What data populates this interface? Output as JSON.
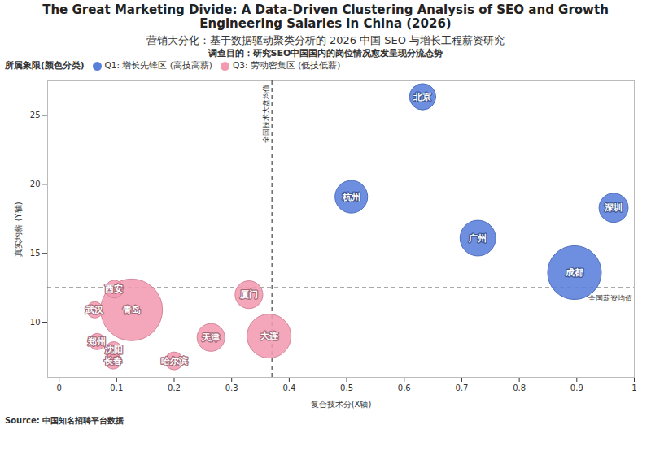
{
  "chart_data": {
    "type": "bubble",
    "title": "The Great Marketing Divide: A Data-Driven Clustering Analysis of SEO and Growth Engineering Salaries in China (2026)",
    "subtitle": "营销大分化：基于数据驱动聚类分析的 2026 中国 SEO 与增长工程薪资研究",
    "purpose": "调查目的：研究SEO中国国内的岗位情况愈发呈现分流态势",
    "legend_title": "所属象限(颜色分类)",
    "legend": "top-left",
    "x_label": "复合技术分(X轴)",
    "y_label": "真实均薪 (Y轴)",
    "source": "Source: 中国知名招聘平台数据",
    "xlim": [
      -0.02,
      1.0
    ],
    "xticks": [
      0,
      0.1,
      0.2,
      0.3,
      0.4,
      0.5,
      0.6,
      0.7,
      0.8,
      0.9,
      1
    ],
    "ylim": [
      6,
      27.5
    ],
    "yticks": [
      10,
      15,
      20,
      25
    ],
    "grid": false,
    "reference_lines": [
      {
        "axis": "x",
        "value": 0.37,
        "label": "全国技术大盘均值"
      },
      {
        "axis": "y",
        "value": 12.5,
        "label": "全国薪资均值"
      }
    ],
    "series": [
      {
        "name": "Q1: 增长先锋区 (高技高薪)",
        "color": "#5a7fdb",
        "labels": [
          "北京",
          "杭州",
          "深圳",
          "广州",
          "成都"
        ],
        "x": [
          0.632,
          0.508,
          0.964,
          0.728,
          0.896
        ],
        "y": [
          26.35,
          19.1,
          18.3,
          16.1,
          13.6
        ],
        "sizes": [
          26,
          40,
          32,
          48,
          109
        ]
      },
      {
        "name": "Q3: 劳动密集区 (低技低薪)",
        "color": "#f39ab0",
        "labels": [
          "厦门",
          "大连",
          "天津",
          "哈尔滨",
          "西安",
          "武汉",
          "青岛",
          "沈阳",
          "长春",
          "郑州"
        ],
        "x": [
          0.33,
          0.365,
          0.264,
          0.2,
          0.096,
          0.062,
          0.126,
          0.095,
          0.094,
          0.066
        ],
        "y": [
          12.0,
          9.0,
          8.9,
          7.2,
          12.4,
          10.9,
          10.9,
          8.0,
          7.2,
          8.6
        ],
        "sizes": [
          29,
          73,
          29,
          12,
          12,
          10,
          144,
          10,
          10,
          10
        ]
      }
    ]
  }
}
